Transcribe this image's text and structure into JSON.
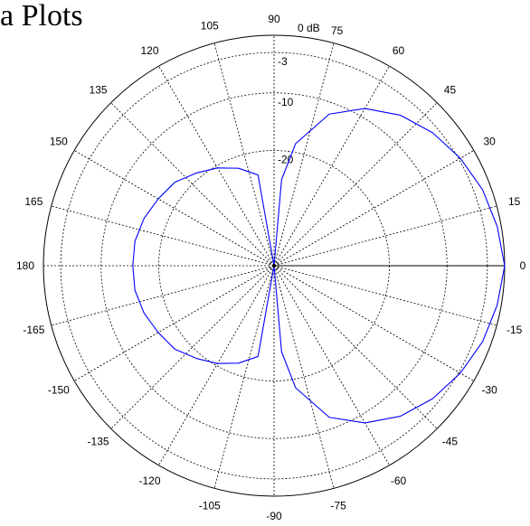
{
  "page": {
    "title_fragment": "a Plots"
  },
  "chart_data": {
    "type": "polar",
    "unit_label": "0 dB",
    "radial_ticks": [
      {
        "label": "-3",
        "db": -3
      },
      {
        "label": "-10",
        "db": -10
      },
      {
        "label": "-20",
        "db": -20
      }
    ],
    "r_min_db": -40,
    "r_max_db": 0,
    "angle_ticks": [
      {
        "label": "0",
        "deg": 0
      },
      {
        "label": "15",
        "deg": 15
      },
      {
        "label": "30",
        "deg": 30
      },
      {
        "label": "45",
        "deg": 45
      },
      {
        "label": "60",
        "deg": 60
      },
      {
        "label": "75",
        "deg": 75
      },
      {
        "label": "90",
        "deg": 90
      },
      {
        "label": "105",
        "deg": 105
      },
      {
        "label": "120",
        "deg": 120
      },
      {
        "label": "135",
        "deg": 135
      },
      {
        "label": "150",
        "deg": 150
      },
      {
        "label": "165",
        "deg": 165
      },
      {
        "label": "180",
        "deg": 180
      },
      {
        "label": "-165",
        "deg": -165
      },
      {
        "label": "-150",
        "deg": -150
      },
      {
        "label": "-135",
        "deg": -135
      },
      {
        "label": "-120",
        "deg": -120
      },
      {
        "label": "-105",
        "deg": -105
      },
      {
        "label": "-90",
        "deg": -90
      },
      {
        "label": "-75",
        "deg": -75
      },
      {
        "label": "-60",
        "deg": -60
      },
      {
        "label": "-45",
        "deg": -45
      },
      {
        "label": "-30",
        "deg": -30
      },
      {
        "label": "-15",
        "deg": -15
      }
    ],
    "grid": true,
    "series": [
      {
        "color": "#0000ff",
        "points_deg_db": [
          [
            0,
            0
          ],
          [
            10,
            -0.7
          ],
          [
            20,
            -1.5
          ],
          [
            30,
            -2.7
          ],
          [
            40,
            -4.1
          ],
          [
            50,
            -5.9
          ],
          [
            60,
            -8.5
          ],
          [
            70,
            -12
          ],
          [
            80,
            -18.5
          ],
          [
            85,
            -25
          ],
          [
            90,
            -40
          ],
          [
            100,
            -24
          ],
          [
            110,
            -22
          ],
          [
            120,
            -20.4
          ],
          [
            130,
            -19
          ],
          [
            140,
            -17.5
          ],
          [
            150,
            -16.8
          ],
          [
            160,
            -16
          ],
          [
            170,
            -15.5
          ],
          [
            180,
            -15.5
          ],
          [
            -170,
            -15.5
          ],
          [
            -160,
            -16
          ],
          [
            -150,
            -16.8
          ],
          [
            -140,
            -17.5
          ],
          [
            -130,
            -19
          ],
          [
            -120,
            -20.4
          ],
          [
            -110,
            -22
          ],
          [
            -100,
            -24
          ],
          [
            -90,
            -40
          ],
          [
            -85,
            -25
          ],
          [
            -80,
            -18.5
          ],
          [
            -70,
            -12
          ],
          [
            -60,
            -8.5
          ],
          [
            -50,
            -5.9
          ],
          [
            -40,
            -4.1
          ],
          [
            -30,
            -2.7
          ],
          [
            -20,
            -1.5
          ],
          [
            -10,
            -0.7
          ],
          [
            0,
            0
          ]
        ]
      }
    ],
    "colors": {
      "grid": "#000000",
      "axis": "#000000",
      "trace": "#0000ff"
    }
  }
}
